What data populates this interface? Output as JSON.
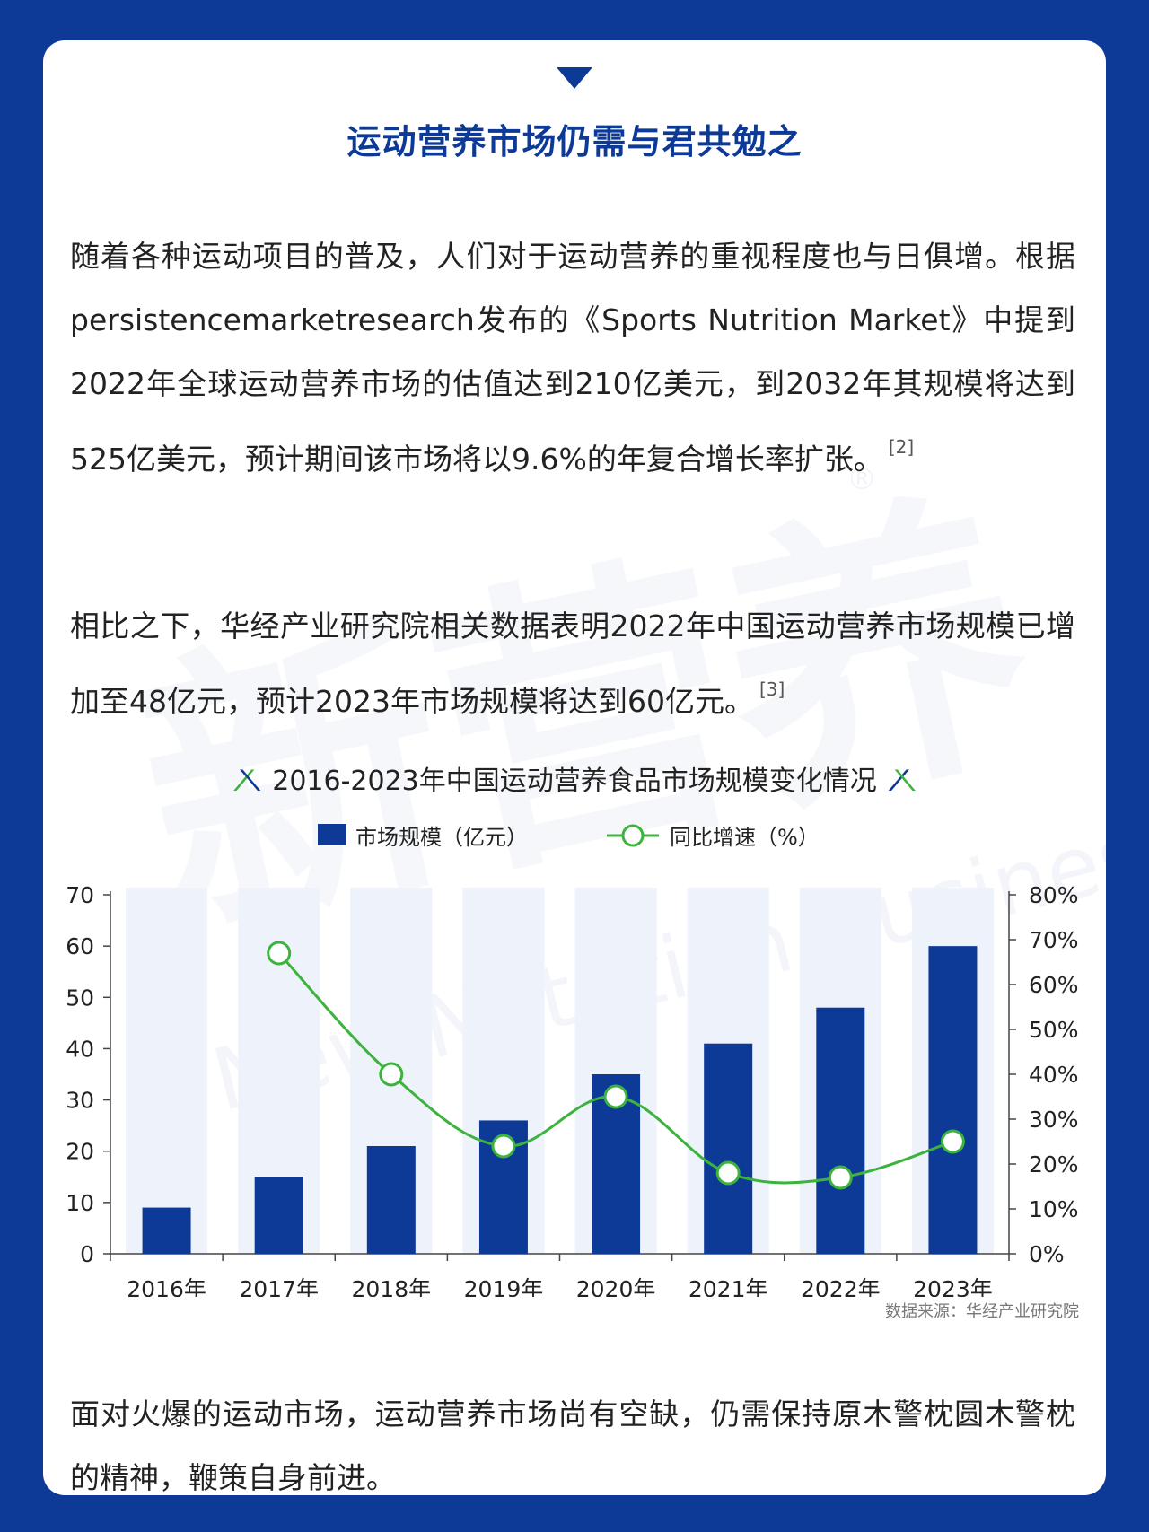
{
  "title": "运动营养市场仍需与君共勉之",
  "paragraphs": {
    "p1": "随着各种运动项目的普及，人们对于运动营养的重视程度也与日俱增。根据persistencemarketresearch发布的《Sports Nutrition Market》中提到2022年全球运动营养市场的估值达到210亿美元，到2032年其规模将达到525亿美元，预计期间该市场将以9.6%的年复合增长率扩张。",
    "p1_ref": "[2]",
    "p2": "相比之下，华经产业研究院相关数据表明2022年中国运动营养市场规模已增加至48亿元，预计2023年市场规模将达到60亿元。",
    "p2_ref": "[3]",
    "p3": "面对火爆的运动市场，运动营养市场尚有空缺，仍需保持原木警枕圆木警枕的精神，鞭策自身前进。"
  },
  "watermark": {
    "brand_cn": "新营养",
    "brand_en": "New Nutrition Business",
    "registered": "®"
  },
  "source_note": "数据来源：华经产业研究院",
  "colors": {
    "bar": "#0d3a96",
    "line": "#3cb33c",
    "band": "#eef3fb",
    "background": "#0d3a96"
  },
  "chart_data": {
    "type": "bar",
    "title": "2016-2023年中国运动营养食品市场规模变化情况",
    "categories": [
      "2016年",
      "2017年",
      "2018年",
      "2019年",
      "2020年",
      "2021年",
      "2022年",
      "2023年"
    ],
    "series": [
      {
        "name": "市场规模（亿元）",
        "type": "bar",
        "axis": "left",
        "values": [
          9,
          15,
          21,
          26,
          35,
          41,
          48,
          60
        ]
      },
      {
        "name": "同比增速（%）",
        "type": "line",
        "axis": "right",
        "values": [
          null,
          67,
          40,
          24,
          35,
          18,
          17,
          25
        ]
      }
    ],
    "y_left": {
      "lim": [
        0,
        70
      ],
      "ticks": [
        0,
        10,
        20,
        30,
        40,
        50,
        60,
        70
      ]
    },
    "y_right": {
      "lim": [
        0,
        80
      ],
      "ticks": [
        "0%",
        "10%",
        "20%",
        "30%",
        "40%",
        "50%",
        "60%",
        "70%",
        "80%"
      ]
    },
    "legend": "top-center",
    "grid": false
  }
}
